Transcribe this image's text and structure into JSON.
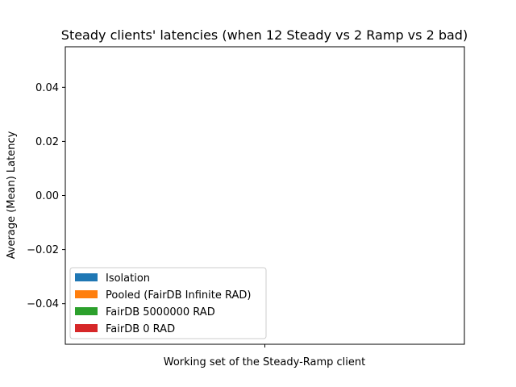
{
  "chart_data": {
    "type": "bar",
    "title": "Steady clients' latencies (when 12 Steady vs 2 Ramp vs 2 bad)",
    "xlabel": "Working set of the Steady-Ramp client",
    "ylabel": "Average (Mean) Latency",
    "categories": [],
    "ylim": [
      -0.055,
      0.055
    ],
    "yticks": [
      0.04,
      0.02,
      0.0,
      -0.02,
      -0.04
    ],
    "ytick_labels": [
      "0.04",
      "0.02",
      "0.00",
      "−0.02",
      "−0.04"
    ],
    "xticks": [
      0
    ],
    "grid": false,
    "legend_position": "lower-left",
    "series": [
      {
        "name": "Isolation",
        "color": "#1f77b4",
        "values": []
      },
      {
        "name": "Pooled (FairDB Infinite RAD)",
        "color": "#ff7f0e",
        "values": []
      },
      {
        "name": "FairDB 5000000 RAD",
        "color": "#2ca02c",
        "values": []
      },
      {
        "name": "FairDB 0 RAD",
        "color": "#d62728",
        "values": []
      }
    ]
  }
}
